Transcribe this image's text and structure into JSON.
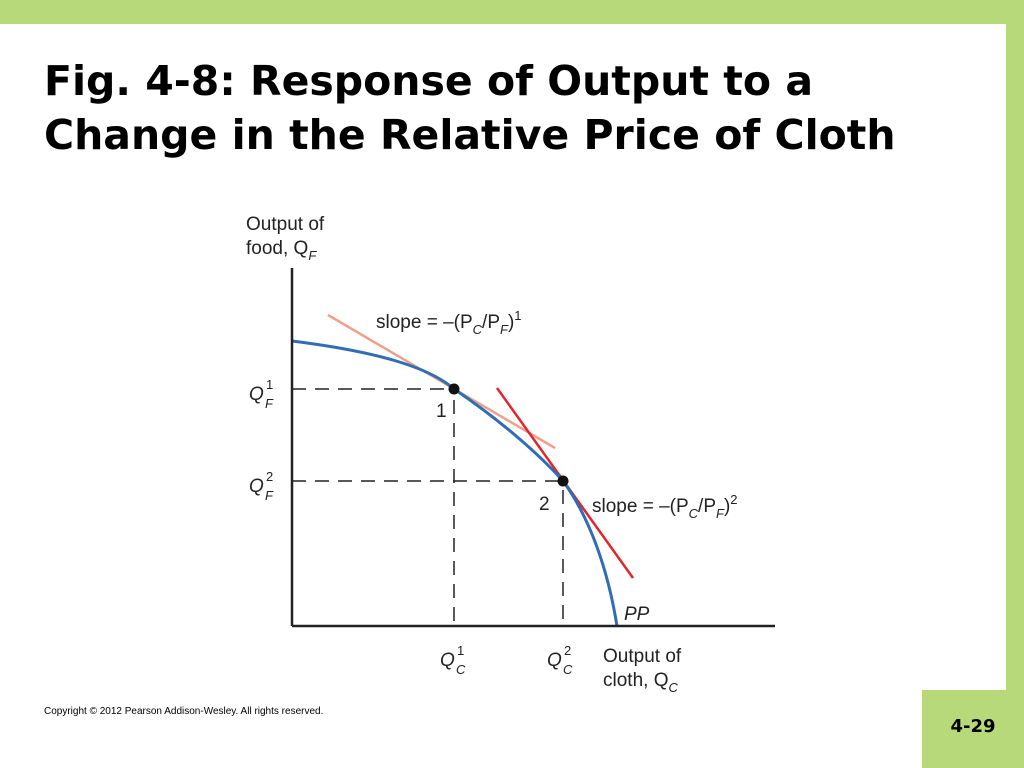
{
  "slide": {
    "title_line1": "Fig. 4-8: Response of Output to a",
    "title_line2": "Change in the Relative Price of Cloth",
    "copyright": "Copyright © 2012 Pearson Addison-Wesley. All rights reserved.",
    "page_number": "4-29"
  },
  "diagram": {
    "y_axis_label": [
      "Output of",
      "food, Q",
      "F"
    ],
    "x_axis_label": [
      "Output of",
      "cloth, Q",
      "C"
    ],
    "curve_label": "PP",
    "point1_label": "1",
    "point2_label": "2",
    "slope1": {
      "prefix": "slope = –(P",
      "sub1": "C",
      "mid": "/P",
      "sub2": "F",
      "close": ")",
      "sup": "1"
    },
    "slope2": {
      "prefix": "slope = –(P",
      "sub1": "C",
      "mid": "/P",
      "sub2": "F",
      "close": ")",
      "sup": "2"
    },
    "qf1": {
      "base": "Q",
      "sup": "1",
      "sub": "F"
    },
    "qf2": {
      "base": "Q",
      "sup": "2",
      "sub": "F"
    },
    "qc1": {
      "base": "Q",
      "sup": "1",
      "sub": "C"
    },
    "qc2": {
      "base": "Q",
      "sup": "2",
      "sub": "C"
    },
    "colors": {
      "frontier": "#2f6db5",
      "tangent1": "#f0a08a",
      "tangent2": "#e0262b",
      "axes": "#222222",
      "slide_background": "#b8d97a"
    }
  }
}
